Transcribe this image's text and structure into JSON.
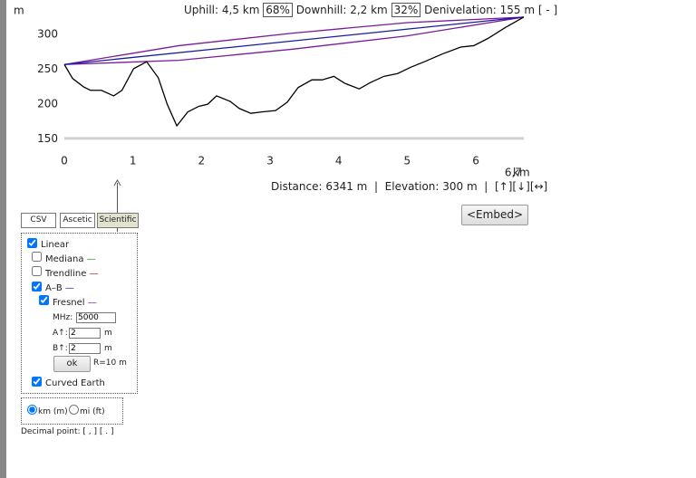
{
  "summary": {
    "uphill": "Uphill: 4,5 km",
    "uphill_pct": "68%",
    "downhill": "Downhill: 2,2 km",
    "downhill_pct": "32%",
    "denivelation": "Denivelation: 155 m",
    "toggle": "[ - ]"
  },
  "chart_data": {
    "type": "line",
    "y_unit": "m",
    "x_unit": "km",
    "xlim": [
      0,
      6.7
    ],
    "ylim": [
      134,
      343
    ],
    "xticks": [
      0,
      1,
      2,
      3,
      4,
      5,
      6,
      {
        "value": 6.7,
        "label": "6,7"
      }
    ],
    "yticks": [
      150,
      200,
      250,
      300
    ],
    "series": [
      {
        "color": "#d0d0d0",
        "x": [
          0,
          6.7
        ],
        "values": [
          151,
          151
        ]
      },
      {
        "color": "#7a1a9a",
        "x": [
          0,
          1.67,
          3.33,
          5,
          6.7
        ],
        "values": [
          257,
          284,
          302,
          317,
          325
        ]
      },
      {
        "color": "#7a1a9a",
        "x": [
          0,
          1.67,
          3.33,
          5,
          6.7
        ],
        "values": [
          257,
          263,
          279,
          298,
          325
        ]
      },
      {
        "color": "#1a1aa0",
        "x": [
          0,
          6.7
        ],
        "values": [
          257,
          325
        ]
      },
      {
        "color": "#000000",
        "x": [
          0,
          0.12,
          0.28,
          0.38,
          0.54,
          0.72,
          0.84,
          1.01,
          1.2,
          1.37,
          1.5,
          1.64,
          1.8,
          1.96,
          2.09,
          2.22,
          2.42,
          2.55,
          2.72,
          2.88,
          3.08,
          3.25,
          3.41,
          3.61,
          3.76,
          3.93,
          4.09,
          4.3,
          4.46,
          4.66,
          4.86,
          5.05,
          5.25,
          5.51,
          5.78,
          5.97,
          6.17,
          6.43,
          6.7
        ],
        "values": [
          257,
          237,
          225,
          220,
          220,
          212,
          220,
          251,
          261,
          238,
          200,
          169,
          189,
          197,
          200,
          212,
          204,
          194,
          187,
          189,
          191,
          203,
          224,
          235,
          235,
          240,
          230,
          222,
          231,
          240,
          244,
          253,
          261,
          272,
          282,
          284,
          294,
          310,
          325
        ]
      }
    ]
  },
  "status": "Distance: 6341 m  |  Elevation: 300 m  |  [↑][↓][↔]",
  "embed": "<Embed>",
  "tabs": [
    "CSV",
    "Ascetic",
    "Scientific"
  ],
  "options": [
    {
      "label": "Linear",
      "checked": true
    },
    {
      "label": "Mediana",
      "checked": false,
      "mark": "—",
      "color": "#2a8a2a"
    },
    {
      "label": "Trendline",
      "checked": false,
      "mark": "—",
      "color": "#a02020"
    },
    {
      "label": "A–B",
      "checked": true,
      "mark": "—",
      "color": "#1a1aa0"
    },
    {
      "label": "Fresnel",
      "checked": true,
      "mark": "—",
      "color": "#7a1a9a"
    }
  ],
  "fresnel_params": {
    "mhz_label": "MHz:",
    "mhz": "5000",
    "a_label": "A↑:",
    "a": "2",
    "a_unit": "m",
    "b_label": "B↑:",
    "b": "2",
    "b_unit": "m",
    "ok": "ok",
    "radius": "R=10 m"
  },
  "curved_earth": {
    "label": "Curved Earth",
    "checked": true
  },
  "units": [
    {
      "label": "km (m)",
      "selected": true
    },
    {
      "label": "mi (ft)",
      "selected": false
    }
  ],
  "decimal": "Decimal point: [ , ] [ . ]"
}
